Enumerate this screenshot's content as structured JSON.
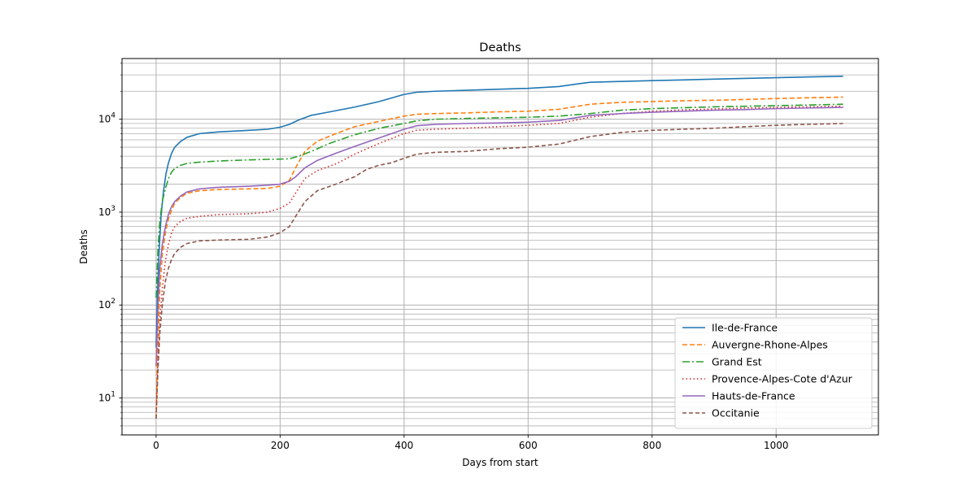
{
  "chart_data": {
    "type": "line",
    "title": "Deaths",
    "xlabel": "Days from start",
    "ylabel": "Deaths",
    "y_scale": "log",
    "xlim": [
      -55,
      1165
    ],
    "ylim": [
      4,
      45000
    ],
    "x_ticks": [
      0,
      200,
      400,
      600,
      800,
      1000
    ],
    "y_ticks": [
      {
        "value": 10,
        "base": "10",
        "exp": "1"
      },
      {
        "value": 100,
        "base": "10",
        "exp": "2"
      },
      {
        "value": 1000,
        "base": "10",
        "exp": "3"
      },
      {
        "value": 10000,
        "base": "10",
        "exp": "4"
      }
    ],
    "grid": true,
    "legend_position": "lower-right",
    "series": [
      {
        "name": "Ile-de-France",
        "color": "#1f77b4",
        "dash": "solid",
        "points": [
          [
            0,
            35
          ],
          [
            2,
            120
          ],
          [
            5,
            400
          ],
          [
            8,
            900
          ],
          [
            12,
            1700
          ],
          [
            16,
            2600
          ],
          [
            20,
            3400
          ],
          [
            25,
            4300
          ],
          [
            30,
            5000
          ],
          [
            40,
            5800
          ],
          [
            50,
            6400
          ],
          [
            70,
            7000
          ],
          [
            100,
            7300
          ],
          [
            150,
            7600
          ],
          [
            180,
            7800
          ],
          [
            200,
            8200
          ],
          [
            215,
            8800
          ],
          [
            230,
            9800
          ],
          [
            250,
            11000
          ],
          [
            280,
            12000
          ],
          [
            320,
            13500
          ],
          [
            360,
            15500
          ],
          [
            400,
            18500
          ],
          [
            420,
            19500
          ],
          [
            450,
            20000
          ],
          [
            500,
            20500
          ],
          [
            550,
            21000
          ],
          [
            600,
            21500
          ],
          [
            650,
            22500
          ],
          [
            680,
            24000
          ],
          [
            700,
            25000
          ],
          [
            750,
            25500
          ],
          [
            800,
            26000
          ],
          [
            850,
            26500
          ],
          [
            900,
            27000
          ],
          [
            950,
            27500
          ],
          [
            1000,
            28000
          ],
          [
            1050,
            28500
          ],
          [
            1108,
            29000
          ]
        ]
      },
      {
        "name": "Auvergne-Rhone-Alpes",
        "color": "#ff7f0e",
        "dash": "6,3",
        "points": [
          [
            0,
            6
          ],
          [
            3,
            40
          ],
          [
            6,
            150
          ],
          [
            10,
            350
          ],
          [
            15,
            600
          ],
          [
            20,
            850
          ],
          [
            25,
            1050
          ],
          [
            30,
            1250
          ],
          [
            40,
            1450
          ],
          [
            50,
            1600
          ],
          [
            70,
            1700
          ],
          [
            100,
            1750
          ],
          [
            150,
            1780
          ],
          [
            180,
            1800
          ],
          [
            200,
            1900
          ],
          [
            215,
            2200
          ],
          [
            225,
            3000
          ],
          [
            240,
            4500
          ],
          [
            260,
            5800
          ],
          [
            290,
            7000
          ],
          [
            320,
            8300
          ],
          [
            360,
            9500
          ],
          [
            400,
            10800
          ],
          [
            420,
            11300
          ],
          [
            450,
            11500
          ],
          [
            500,
            11700
          ],
          [
            550,
            12000
          ],
          [
            600,
            12200
          ],
          [
            650,
            12800
          ],
          [
            700,
            14500
          ],
          [
            750,
            15200
          ],
          [
            800,
            15500
          ],
          [
            850,
            15800
          ],
          [
            900,
            16000
          ],
          [
            950,
            16300
          ],
          [
            1000,
            16700
          ],
          [
            1050,
            17000
          ],
          [
            1108,
            17300
          ]
        ]
      },
      {
        "name": "Grand Est",
        "color": "#2ca02c",
        "dash": "9,3,2,3",
        "points": [
          [
            0,
            120
          ],
          [
            3,
            400
          ],
          [
            6,
            800
          ],
          [
            10,
            1300
          ],
          [
            15,
            1800
          ],
          [
            20,
            2300
          ],
          [
            25,
            2700
          ],
          [
            30,
            2950
          ],
          [
            40,
            3200
          ],
          [
            50,
            3350
          ],
          [
            70,
            3450
          ],
          [
            100,
            3550
          ],
          [
            150,
            3650
          ],
          [
            180,
            3700
          ],
          [
            200,
            3720
          ],
          [
            215,
            3750
          ],
          [
            230,
            4000
          ],
          [
            250,
            4500
          ],
          [
            280,
            5500
          ],
          [
            320,
            6800
          ],
          [
            360,
            8000
          ],
          [
            400,
            9000
          ],
          [
            420,
            9600
          ],
          [
            450,
            10000
          ],
          [
            500,
            10200
          ],
          [
            600,
            10500
          ],
          [
            650,
            10800
          ],
          [
            700,
            11500
          ],
          [
            750,
            12500
          ],
          [
            800,
            13000
          ],
          [
            850,
            13300
          ],
          [
            900,
            13600
          ],
          [
            950,
            13800
          ],
          [
            1000,
            14000
          ],
          [
            1050,
            14200
          ],
          [
            1108,
            14500
          ]
        ]
      },
      {
        "name": "Provence-Alpes-Cote d'Azur",
        "color": "#d62728",
        "dash": "1.5,3",
        "points": [
          [
            0,
            7
          ],
          [
            3,
            25
          ],
          [
            6,
            70
          ],
          [
            10,
            150
          ],
          [
            15,
            300
          ],
          [
            20,
            450
          ],
          [
            25,
            600
          ],
          [
            30,
            700
          ],
          [
            40,
            800
          ],
          [
            50,
            860
          ],
          [
            70,
            900
          ],
          [
            100,
            940
          ],
          [
            150,
            960
          ],
          [
            180,
            1000
          ],
          [
            200,
            1100
          ],
          [
            215,
            1250
          ],
          [
            225,
            1600
          ],
          [
            240,
            2300
          ],
          [
            260,
            2800
          ],
          [
            290,
            3300
          ],
          [
            320,
            4200
          ],
          [
            360,
            5500
          ],
          [
            400,
            7000
          ],
          [
            420,
            7600
          ],
          [
            450,
            7800
          ],
          [
            500,
            8000
          ],
          [
            550,
            8300
          ],
          [
            600,
            8600
          ],
          [
            650,
            9000
          ],
          [
            700,
            10500
          ],
          [
            750,
            11500
          ],
          [
            800,
            12200
          ],
          [
            850,
            12600
          ],
          [
            900,
            12900
          ],
          [
            950,
            13200
          ],
          [
            1000,
            13400
          ],
          [
            1050,
            13600
          ],
          [
            1108,
            13800
          ]
        ]
      },
      {
        "name": "Hauts-de-France",
        "color": "#9467bd",
        "dash": "solid",
        "points": [
          [
            0,
            22
          ],
          [
            3,
            100
          ],
          [
            6,
            250
          ],
          [
            10,
            450
          ],
          [
            15,
            700
          ],
          [
            20,
            950
          ],
          [
            25,
            1150
          ],
          [
            30,
            1300
          ],
          [
            40,
            1500
          ],
          [
            50,
            1650
          ],
          [
            70,
            1780
          ],
          [
            100,
            1850
          ],
          [
            150,
            1900
          ],
          [
            180,
            1950
          ],
          [
            200,
            2000
          ],
          [
            215,
            2150
          ],
          [
            225,
            2400
          ],
          [
            240,
            3000
          ],
          [
            260,
            3600
          ],
          [
            290,
            4300
          ],
          [
            320,
            5100
          ],
          [
            360,
            6300
          ],
          [
            400,
            7800
          ],
          [
            420,
            8500
          ],
          [
            450,
            8800
          ],
          [
            500,
            9000
          ],
          [
            550,
            9100
          ],
          [
            600,
            9300
          ],
          [
            650,
            9700
          ],
          [
            700,
            11000
          ],
          [
            750,
            11500
          ],
          [
            800,
            11900
          ],
          [
            850,
            12200
          ],
          [
            900,
            12500
          ],
          [
            950,
            12700
          ],
          [
            1000,
            13000
          ],
          [
            1050,
            13200
          ],
          [
            1108,
            13400
          ]
        ]
      },
      {
        "name": "Occitanie",
        "color": "#8c564b",
        "dash": "5,3",
        "points": [
          [
            0,
            6
          ],
          [
            3,
            20
          ],
          [
            6,
            50
          ],
          [
            10,
            100
          ],
          [
            15,
            180
          ],
          [
            20,
            250
          ],
          [
            25,
            310
          ],
          [
            30,
            360
          ],
          [
            40,
            420
          ],
          [
            50,
            460
          ],
          [
            70,
            490
          ],
          [
            100,
            500
          ],
          [
            150,
            510
          ],
          [
            180,
            540
          ],
          [
            200,
            600
          ],
          [
            215,
            700
          ],
          [
            225,
            900
          ],
          [
            240,
            1300
          ],
          [
            260,
            1700
          ],
          [
            290,
            2000
          ],
          [
            320,
            2400
          ],
          [
            340,
            2900
          ],
          [
            360,
            3200
          ],
          [
            380,
            3400
          ],
          [
            400,
            3800
          ],
          [
            420,
            4200
          ],
          [
            450,
            4400
          ],
          [
            500,
            4500
          ],
          [
            550,
            4800
          ],
          [
            600,
            5000
          ],
          [
            650,
            5400
          ],
          [
            700,
            6500
          ],
          [
            750,
            7200
          ],
          [
            800,
            7600
          ],
          [
            850,
            7800
          ],
          [
            900,
            8000
          ],
          [
            950,
            8300
          ],
          [
            1000,
            8600
          ],
          [
            1050,
            8800
          ],
          [
            1108,
            9000
          ]
        ]
      }
    ]
  }
}
